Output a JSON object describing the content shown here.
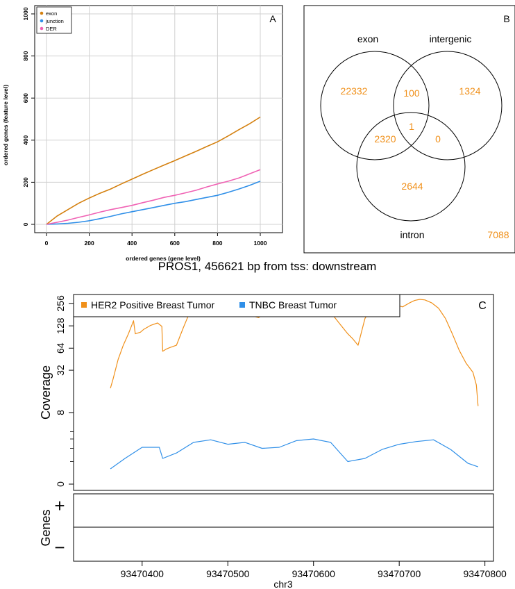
{
  "colors": {
    "exon": "#d4800f",
    "junction": "#2f8fe8",
    "der": "#f062b4",
    "venn_label": "#f0901a",
    "her2": "#f0901a",
    "tnbc": "#2f8fe8",
    "grid": "#d0d0d0"
  },
  "chart_data": [
    {
      "panel": "A",
      "type": "line",
      "panel_label": "A",
      "xlabel": "ordered genes (gene level)",
      "ylabel": "ordered genes (feature level)",
      "xlim": [
        0,
        1000
      ],
      "ylim": [
        0,
        1000
      ],
      "x_ticks": [
        0,
        200,
        400,
        600,
        800,
        1000
      ],
      "y_ticks": [
        0,
        200,
        400,
        600,
        800,
        1000
      ],
      "grid": true,
      "legend_position": "top-left",
      "series": [
        {
          "name": "exon",
          "color_key": "exon",
          "x": [
            0,
            50,
            100,
            150,
            200,
            250,
            300,
            350,
            400,
            450,
            500,
            550,
            600,
            650,
            700,
            750,
            800,
            850,
            900,
            950,
            1000
          ],
          "y": [
            0,
            40,
            70,
            100,
            125,
            148,
            168,
            192,
            215,
            238,
            260,
            282,
            303,
            325,
            347,
            370,
            392,
            420,
            450,
            478,
            510
          ]
        },
        {
          "name": "junction",
          "color_key": "junction",
          "x": [
            0,
            50,
            100,
            150,
            200,
            250,
            300,
            350,
            400,
            450,
            500,
            550,
            600,
            650,
            700,
            750,
            800,
            850,
            900,
            950,
            1000
          ],
          "y": [
            0,
            2,
            5,
            10,
            17,
            27,
            38,
            50,
            60,
            70,
            80,
            90,
            100,
            108,
            118,
            128,
            138,
            152,
            168,
            185,
            205
          ]
        },
        {
          "name": "DER",
          "color_key": "der",
          "x": [
            0,
            50,
            100,
            150,
            200,
            250,
            300,
            350,
            400,
            450,
            500,
            550,
            600,
            650,
            700,
            750,
            800,
            850,
            900,
            950,
            1000
          ],
          "y": [
            0,
            10,
            20,
            33,
            45,
            58,
            70,
            80,
            90,
            103,
            115,
            128,
            138,
            150,
            162,
            178,
            192,
            205,
            220,
            240,
            260
          ]
        }
      ]
    },
    {
      "panel": "B",
      "type": "venn",
      "panel_label": "B",
      "sets": [
        "exon",
        "intergenic",
        "intron"
      ],
      "regions": {
        "exon_only": "22332",
        "intergenic_only": "1324",
        "intron_only": "2644",
        "exon_intergenic": "100",
        "exon_intron": "2320",
        "intergenic_intron": "0",
        "all_three": "1",
        "none": "7088"
      }
    },
    {
      "panel": "C",
      "type": "line",
      "panel_label": "C",
      "title": "PROS1, 456621 bp from tss: downstream",
      "ylabel": "Coverage",
      "xlabel": "chr3",
      "y_scale": "log2(y+1)",
      "y_ticks": [
        "256",
        "128",
        "64",
        "32",
        "8",
        "0"
      ],
      "x_ticks": [
        "93470400",
        "93470500",
        "93470600",
        "93470700",
        "93470800"
      ],
      "xlim": [
        93470320,
        93470810
      ],
      "genes_ylabel": "Genes",
      "genes_plus": "+",
      "genes_minus": "−",
      "series": [
        {
          "name": "HER2 Positive Breast Tumor",
          "color_key": "her2",
          "x": [
            93470363,
            93470366,
            93470372,
            93470378,
            93470384,
            93470390,
            93470392,
            93470398,
            93470402,
            93470410,
            93470418,
            93470423,
            93470424,
            93470428,
            93470432,
            93470440,
            93470448,
            93470456,
            93470462,
            93470468,
            93470472,
            93470478,
            93470484,
            93470492,
            93470502,
            93470512,
            93470520,
            93470528,
            93470536,
            93470546,
            93470556,
            93470566,
            93470576,
            93470584,
            93470592,
            93470600,
            93470608,
            93470616,
            93470624,
            93470632,
            93470640,
            93470646,
            93470652,
            93470660,
            93470668,
            93470676,
            93470684,
            93470692,
            93470698,
            93470704,
            93470712,
            93470718,
            93470724,
            93470730,
            93470738,
            93470746,
            93470754,
            93470762,
            93470770,
            93470778,
            93470786,
            93470790,
            93470792
          ],
          "y": [
            18,
            24,
            45,
            70,
            100,
            150,
            100,
            105,
            115,
            130,
            140,
            126,
            58,
            62,
            65,
            70,
            120,
            200,
            260,
            290,
            270,
            250,
            210,
            200,
            190,
            170,
            180,
            175,
            165,
            200,
            210,
            230,
            280,
            300,
            300,
            290,
            250,
            220,
            170,
            130,
            100,
            85,
            70,
            160,
            230,
            260,
            270,
            250,
            240,
            230,
            260,
            280,
            290,
            285,
            260,
            220,
            160,
            100,
            60,
            40,
            30,
            20,
            10
          ]
        },
        {
          "name": "TNBC Breast Tumor",
          "color_key": "tnbc",
          "x": [
            93470363,
            93470380,
            93470400,
            93470420,
            93470424,
            93470440,
            93470460,
            93470480,
            93470500,
            93470520,
            93470540,
            93470560,
            93470580,
            93470600,
            93470620,
            93470640,
            93470660,
            93470680,
            93470700,
            93470720,
            93470740,
            93470760,
            93470780,
            93470792
          ],
          "y": [
            0.6,
            1.2,
            2.1,
            2.1,
            1.2,
            1.6,
            2.6,
            2.9,
            2.4,
            2.6,
            2.0,
            2.1,
            2.8,
            3.0,
            2.6,
            1.0,
            1.2,
            1.9,
            2.4,
            2.7,
            2.9,
            1.9,
            0.9,
            0.7
          ]
        }
      ]
    }
  ]
}
